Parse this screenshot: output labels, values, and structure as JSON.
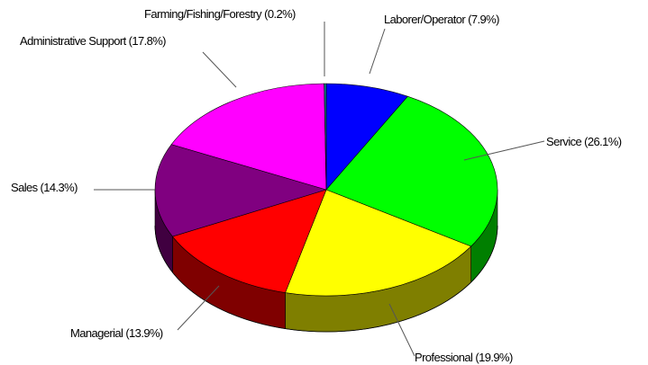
{
  "chart_data": {
    "type": "pie",
    "title": "",
    "slices": [
      {
        "label": "Laborer/Operator (7.9%)",
        "value": 7.9,
        "color": "#0000ff",
        "side": "#00007f"
      },
      {
        "label": "Service (26.1%)",
        "value": 26.1,
        "color": "#00ff00",
        "side": "#007f00"
      },
      {
        "label": "Professional (19.9%)",
        "value": 19.9,
        "color": "#ffff00",
        "side": "#7f7f00"
      },
      {
        "label": "Managerial (13.9%)",
        "value": 13.9,
        "color": "#ff0000",
        "side": "#7f0000"
      },
      {
        "label": "Sales (14.3%)",
        "value": 14.3,
        "color": "#800080",
        "side": "#400040"
      },
      {
        "label": "Administrative Support (17.8%)",
        "value": 17.8,
        "color": "#ff00ff",
        "side": "#7f007f"
      },
      {
        "label": "Farming/Fishing/Forestry (0.2%)",
        "value": 0.2,
        "color": "#008080",
        "side": "#004040"
      }
    ]
  }
}
